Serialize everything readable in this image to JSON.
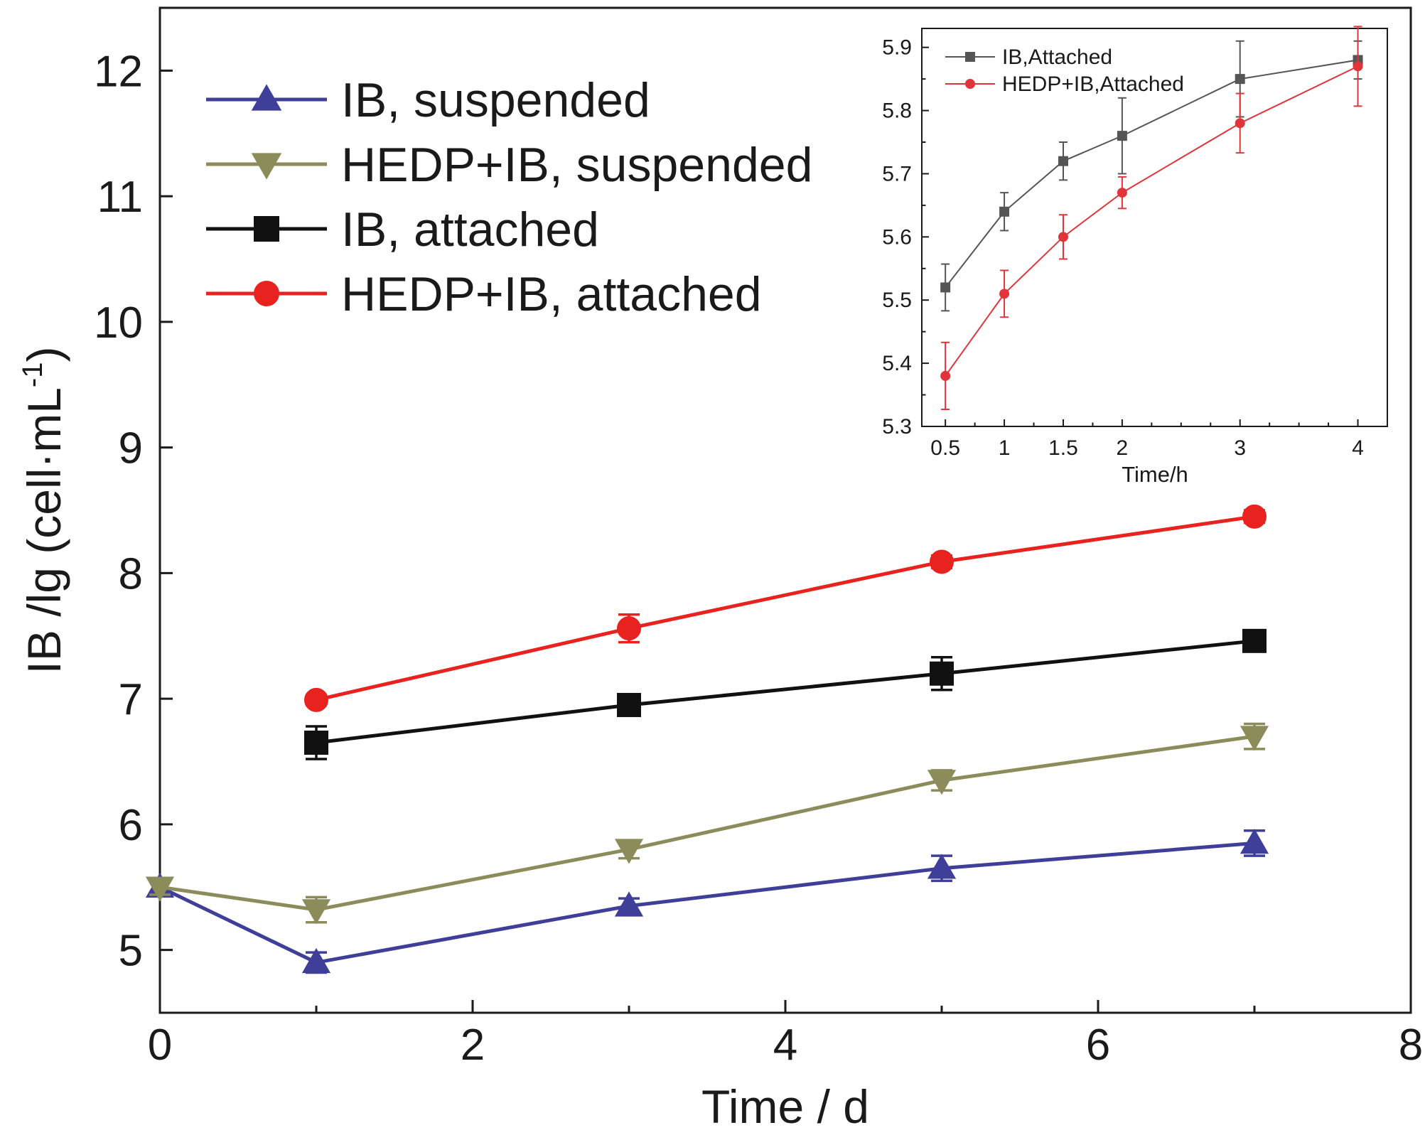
{
  "chart_data": [
    {
      "id": "main",
      "type": "line",
      "title": "",
      "xlabel": "Time / d",
      "ylabel": "IB /lg (cell·mL",
      "ylabel_superscript": "-1",
      "ylabel_close": ")",
      "xlim": [
        0,
        8
      ],
      "ylim": [
        4.5,
        12.5
      ],
      "xticks": [
        0,
        2,
        4,
        6,
        8
      ],
      "yticks": [
        5,
        6,
        7,
        8,
        9,
        10,
        11,
        12
      ],
      "grid": false,
      "legend_position": "top-left",
      "series": [
        {
          "name": "IB, suspended",
          "color": "#3f3f9a",
          "marker": "triangle-up",
          "points": [
            {
              "x": 0,
              "y": 5.5,
              "err": 0.06
            },
            {
              "x": 1,
              "y": 4.9,
              "err": 0.08
            },
            {
              "x": 3,
              "y": 5.35,
              "err": 0.06
            },
            {
              "x": 5,
              "y": 5.65,
              "err": 0.1
            },
            {
              "x": 7,
              "y": 5.85,
              "err": 0.1
            }
          ]
        },
        {
          "name": "HEDP+IB, suspended",
          "color": "#8c8c5a",
          "marker": "triangle-down",
          "points": [
            {
              "x": 0,
              "y": 5.5,
              "err": 0.06
            },
            {
              "x": 1,
              "y": 5.32,
              "err": 0.1
            },
            {
              "x": 3,
              "y": 5.8,
              "err": 0.07
            },
            {
              "x": 5,
              "y": 6.35,
              "err": 0.08
            },
            {
              "x": 7,
              "y": 6.7,
              "err": 0.1
            }
          ]
        },
        {
          "name": "IB, attached",
          "color": "#111111",
          "marker": "square",
          "points": [
            {
              "x": 1,
              "y": 6.65,
              "err": 0.13
            },
            {
              "x": 3,
              "y": 6.95,
              "err": 0.06
            },
            {
              "x": 5,
              "y": 7.2,
              "err": 0.13
            },
            {
              "x": 7,
              "y": 7.46,
              "err": 0.04
            }
          ]
        },
        {
          "name": "HEDP+IB, attached",
          "color": "#e8231f",
          "marker": "circle",
          "points": [
            {
              "x": 1,
              "y": 6.99,
              "err": 0.04
            },
            {
              "x": 3,
              "y": 7.56,
              "err": 0.11
            },
            {
              "x": 5,
              "y": 8.09,
              "err": 0.05
            },
            {
              "x": 7,
              "y": 8.45,
              "err": 0.05
            }
          ]
        }
      ]
    },
    {
      "id": "inset",
      "type": "line",
      "title": "",
      "xlabel": "Time/h",
      "ylabel": "",
      "xlim": [
        0.3,
        4.25
      ],
      "ylim": [
        5.3,
        5.93
      ],
      "xticks": [
        0.5,
        1,
        1.5,
        2,
        3,
        4
      ],
      "xtick_labels": [
        "0.5",
        "1",
        "1.5",
        "2",
        "3",
        "4"
      ],
      "yticks": [
        5.3,
        5.4,
        5.5,
        5.6,
        5.7,
        5.8,
        5.9
      ],
      "ytick_labels": [
        "5.3",
        "5.4",
        "5.5",
        "5.6",
        "5.7",
        "5.8",
        "5.9"
      ],
      "grid": false,
      "legend_position": "top-left",
      "series": [
        {
          "name": "IB,Attached",
          "color": "#555555",
          "marker": "square",
          "points": [
            {
              "x": 0.5,
              "y": 5.52,
              "err": 0.037
            },
            {
              "x": 1,
              "y": 5.64,
              "err": 0.03
            },
            {
              "x": 1.5,
              "y": 5.72,
              "err": 0.03
            },
            {
              "x": 2,
              "y": 5.76,
              "err": 0.06
            },
            {
              "x": 3,
              "y": 5.85,
              "err": 0.06
            },
            {
              "x": 4,
              "y": 5.88,
              "err": 0.03
            }
          ]
        },
        {
          "name": "HEDP+IB,Attached",
          "color": "#e0353a",
          "marker": "circle",
          "points": [
            {
              "x": 0.5,
              "y": 5.38,
              "err": 0.053
            },
            {
              "x": 1,
              "y": 5.51,
              "err": 0.037
            },
            {
              "x": 1.5,
              "y": 5.6,
              "err": 0.035
            },
            {
              "x": 2,
              "y": 5.67,
              "err": 0.025
            },
            {
              "x": 3,
              "y": 5.78,
              "err": 0.047
            },
            {
              "x": 4,
              "y": 5.87,
              "err": 0.063
            }
          ]
        }
      ]
    }
  ]
}
